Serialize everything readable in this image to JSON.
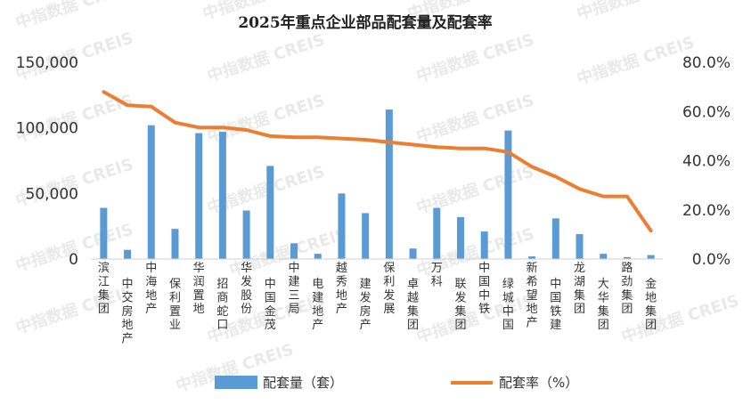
{
  "watermark": "中指数据 CREIS",
  "chart_data": {
    "type": "bar",
    "title": "2025年重点企业部品配套量及配套率",
    "categories": [
      "滨江集团",
      "中交房地产",
      "中海地产",
      "保利置业",
      "华润置地",
      "招商蛇口",
      "华发股份",
      "中国金茂",
      "中建三局",
      "电建地产",
      "越秀地产",
      "建发房产",
      "保利发展",
      "卓越集团",
      "万科",
      "联发集团",
      "中国中铁",
      "绿城中国",
      "新希望地产",
      "中国铁建",
      "龙湖集团",
      "大华集团",
      "路劲集团",
      "金地集团"
    ],
    "series": [
      {
        "name": "配套量（套）",
        "type": "bar",
        "axis": "left",
        "color": "#5b9bd5",
        "values": [
          39000,
          7000,
          102000,
          23000,
          96000,
          97000,
          37000,
          71000,
          12000,
          4000,
          50000,
          35000,
          114000,
          8000,
          39000,
          32000,
          21000,
          98000,
          2000,
          31000,
          19000,
          4000,
          1500,
          3000
        ]
      },
      {
        "name": "配套率（%）",
        "type": "line",
        "axis": "right",
        "color": "#ed7d31",
        "values": [
          68,
          62.5,
          62,
          55.5,
          53.5,
          53.5,
          52.5,
          50,
          49.5,
          49.5,
          49,
          48.5,
          47.5,
          46.5,
          45.5,
          45,
          45,
          43.5,
          37.5,
          33.5,
          28.5,
          25.5,
          25.5,
          11.5
        ]
      }
    ],
    "y_left": {
      "range": [
        0,
        150000
      ],
      "ticks": [
        "0",
        "50,000",
        "100,000",
        "150,000"
      ]
    },
    "y_right": {
      "range": [
        0,
        80
      ],
      "ticks": [
        "0.0%",
        "20.0%",
        "40.0%",
        "60.0%",
        "80.0%"
      ]
    },
    "grid": false,
    "legend": "bottom"
  }
}
